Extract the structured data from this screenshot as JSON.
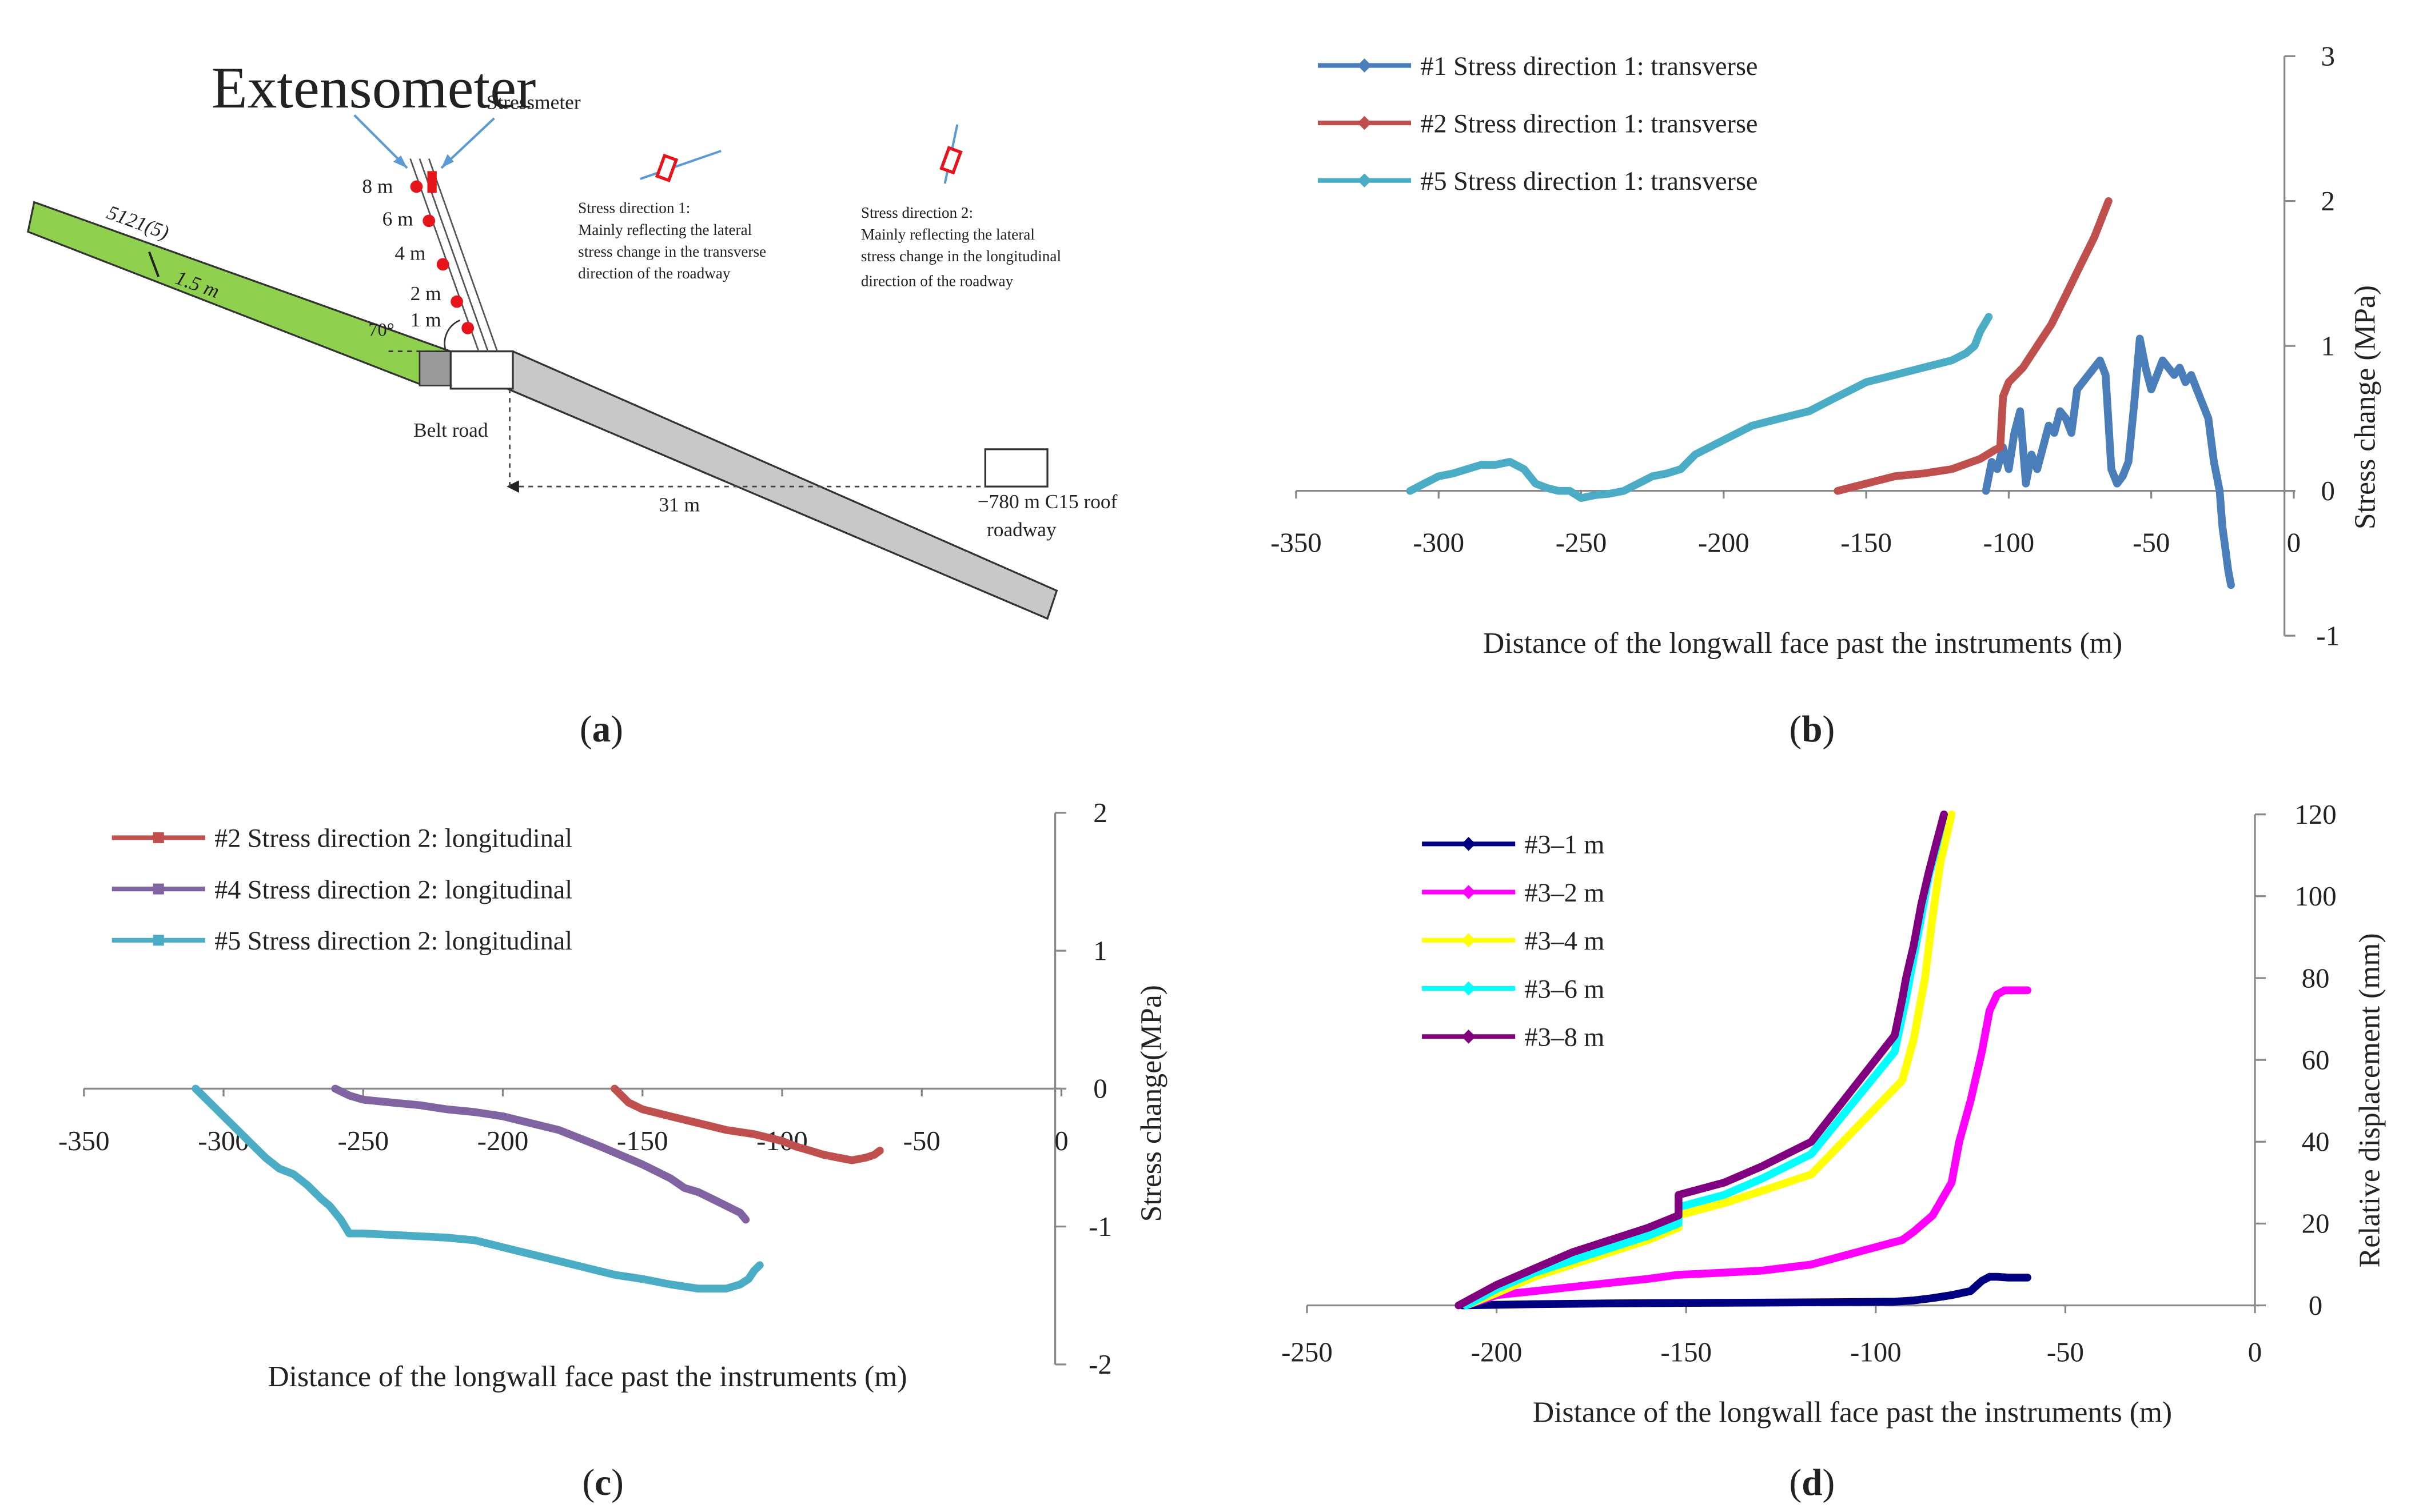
{
  "panels": {
    "a": {
      "caption_letter": "a",
      "labels": {
        "extensometer": "Extensometer",
        "stressmeter": "Stressmeter",
        "seam": "5121(5)",
        "thickness": "1.5 m",
        "angle": "70°",
        "belt_road": "Belt road",
        "distance": "31 m",
        "roof_roadway_1": "−780 m C15 roof",
        "roof_roadway_2": "roadway",
        "depths": [
          "8 m",
          "6 m",
          "4 m",
          "2 m",
          "1 m"
        ],
        "dir1": [
          "Stress direction 1:",
          "Mainly reflecting the lateral",
          "stress change in the transverse",
          "direction of the roadway"
        ],
        "dir2": [
          "Stress direction 2:",
          "Mainly reflecting the lateral",
          "stress change in the longitudinal",
          "direction of the roadway"
        ]
      },
      "colors": {
        "seam": "#8fd14f",
        "roadway": "#c8c8c8",
        "sensor": "#e8141c"
      }
    }
  },
  "chart_data": [
    {
      "id": "b",
      "caption_letter": "b",
      "type": "line",
      "xlabel": "Distance of the longwall face past the instruments (m)",
      "ylabel": "Stress change (MPa)",
      "xlim": [
        -350,
        0
      ],
      "ylim": [
        -1,
        3
      ],
      "xticks": [
        -350,
        -300,
        -250,
        -200,
        -150,
        -100,
        -50,
        0
      ],
      "yticks": [
        -1,
        0,
        1,
        2,
        3
      ],
      "y_axis_side": "right",
      "legend_position": "top-left",
      "series": [
        {
          "name": "#1 Stress direction 1: transverse",
          "color": "#4a7ebb",
          "x": [
            -108,
            -106,
            -104,
            -102,
            -100,
            -98,
            -96,
            -94,
            -92,
            -90,
            -88,
            -86,
            -84,
            -82,
            -80,
            -78,
            -76,
            -74,
            -72,
            -70,
            -68,
            -66,
            -64,
            -62,
            -60,
            -58,
            -56,
            -54,
            -52,
            -50,
            -48,
            -46,
            -44,
            -42,
            -40,
            -38,
            -36,
            -34,
            -32,
            -30,
            -28,
            -26,
            -25,
            -24,
            -23,
            -22
          ],
          "y": [
            0.0,
            0.2,
            0.15,
            0.3,
            0.15,
            0.4,
            0.55,
            0.05,
            0.25,
            0.15,
            0.3,
            0.45,
            0.4,
            0.55,
            0.5,
            0.4,
            0.7,
            0.75,
            0.8,
            0.85,
            0.9,
            0.8,
            0.15,
            0.05,
            0.1,
            0.2,
            0.6,
            1.05,
            0.85,
            0.7,
            0.8,
            0.9,
            0.85,
            0.8,
            0.85,
            0.75,
            0.8,
            0.7,
            0.6,
            0.5,
            0.2,
            0.0,
            -0.25,
            -0.4,
            -0.55,
            -0.65
          ]
        },
        {
          "name": "#2 Stress direction 1: transverse",
          "color": "#c0504d",
          "x": [
            -160,
            -150,
            -140,
            -130,
            -120,
            -110,
            -105,
            -103,
            -102,
            -101,
            -100,
            -95,
            -90,
            -85,
            -80,
            -75,
            -70,
            -67,
            -65
          ],
          "y": [
            0.0,
            0.05,
            0.1,
            0.12,
            0.15,
            0.22,
            0.28,
            0.3,
            0.65,
            0.7,
            0.75,
            0.85,
            1.0,
            1.15,
            1.35,
            1.55,
            1.75,
            1.9,
            2.0
          ]
        },
        {
          "name": "#5 Stress direction 1: transverse",
          "color": "#4bacc6",
          "x": [
            -310,
            -305,
            -300,
            -295,
            -290,
            -285,
            -280,
            -275,
            -270,
            -266,
            -262,
            -258,
            -254,
            -250,
            -245,
            -240,
            -235,
            -230,
            -225,
            -220,
            -215,
            -210,
            -200,
            -190,
            -180,
            -170,
            -165,
            -160,
            -155,
            -150,
            -140,
            -130,
            -120,
            -115,
            -112,
            -110,
            -107
          ],
          "y": [
            0.0,
            0.05,
            0.1,
            0.12,
            0.15,
            0.18,
            0.18,
            0.2,
            0.15,
            0.05,
            0.02,
            0.0,
            0.0,
            -0.05,
            -0.03,
            -0.02,
            0.0,
            0.05,
            0.1,
            0.12,
            0.15,
            0.25,
            0.35,
            0.45,
            0.5,
            0.55,
            0.6,
            0.65,
            0.7,
            0.75,
            0.8,
            0.85,
            0.9,
            0.95,
            1.0,
            1.1,
            1.2
          ]
        }
      ]
    },
    {
      "id": "c",
      "caption_letter": "c",
      "type": "line",
      "xlabel": "Distance of the longwall face past the instruments (m)",
      "ylabel": "Stress change(MPa)",
      "xlim": [
        -350,
        0
      ],
      "ylim": [
        -2,
        2
      ],
      "xticks": [
        -350,
        -300,
        -250,
        -200,
        -150,
        -100,
        -50,
        0
      ],
      "yticks": [
        -2,
        -1,
        0,
        1,
        2
      ],
      "y_axis_side": "right",
      "legend_position": "top-left",
      "series": [
        {
          "name": "#2 Stress direction 2: longitudinal",
          "color": "#c0504d",
          "x": [
            -160,
            -155,
            -150,
            -140,
            -130,
            -120,
            -110,
            -100,
            -95,
            -90,
            -85,
            -80,
            -75,
            -70,
            -67,
            -65
          ],
          "y": [
            0.0,
            -0.1,
            -0.15,
            -0.2,
            -0.25,
            -0.3,
            -0.33,
            -0.38,
            -0.42,
            -0.45,
            -0.48,
            -0.5,
            -0.52,
            -0.5,
            -0.48,
            -0.45
          ]
        },
        {
          "name": "#4 Stress direction 2: longitudinal",
          "color": "#8064a2",
          "x": [
            -260,
            -255,
            -250,
            -240,
            -230,
            -220,
            -210,
            -200,
            -190,
            -180,
            -170,
            -165,
            -150,
            -140,
            -135,
            -130,
            -125,
            -120,
            -115,
            -113
          ],
          "y": [
            0.0,
            -0.05,
            -0.08,
            -0.1,
            -0.12,
            -0.15,
            -0.17,
            -0.2,
            -0.25,
            -0.3,
            -0.38,
            -0.42,
            -0.55,
            -0.65,
            -0.72,
            -0.75,
            -0.8,
            -0.85,
            -0.9,
            -0.95
          ]
        },
        {
          "name": "#5 Stress direction 2: longitudinal",
          "color": "#4bacc6",
          "x": [
            -310,
            -305,
            -300,
            -295,
            -290,
            -285,
            -280,
            -275,
            -270,
            -265,
            -262,
            -258,
            -255,
            -250,
            -240,
            -230,
            -220,
            -210,
            -200,
            -190,
            -180,
            -170,
            -160,
            -150,
            -140,
            -130,
            -120,
            -115,
            -112,
            -110,
            -108
          ],
          "y": [
            0.0,
            -0.1,
            -0.2,
            -0.3,
            -0.4,
            -0.5,
            -0.58,
            -0.62,
            -0.7,
            -0.8,
            -0.85,
            -0.95,
            -1.05,
            -1.05,
            -1.06,
            -1.07,
            -1.08,
            -1.1,
            -1.15,
            -1.2,
            -1.25,
            -1.3,
            -1.35,
            -1.38,
            -1.42,
            -1.45,
            -1.45,
            -1.42,
            -1.38,
            -1.32,
            -1.28
          ]
        }
      ]
    },
    {
      "id": "d",
      "caption_letter": "d",
      "type": "line",
      "xlabel": "Distance of the longwall face past the instruments (m)",
      "ylabel": "Relative displacement (mm)",
      "xlim": [
        -250,
        0
      ],
      "ylim": [
        0,
        120
      ],
      "xticks": [
        -250,
        -200,
        -150,
        -100,
        -50,
        0
      ],
      "yticks": [
        0,
        20,
        40,
        60,
        80,
        100,
        120
      ],
      "y_axis_side": "right",
      "legend_position": "top-left",
      "series": [
        {
          "name": "#3–1 m",
          "color": "#000080",
          "x": [
            -209,
            -190,
            -170,
            -150,
            -130,
            -110,
            -95,
            -90,
            -85,
            -80,
            -75,
            -72,
            -70,
            -68,
            -65,
            -60
          ],
          "y": [
            0,
            0.3,
            0.5,
            0.6,
            0.7,
            0.8,
            0.9,
            1.2,
            1.8,
            2.5,
            3.5,
            6.0,
            7.0,
            7.0,
            6.8,
            6.8
          ]
        },
        {
          "name": "#3–2 m",
          "color": "#ff00ff",
          "x": [
            -208,
            -200,
            -190,
            -180,
            -170,
            -160,
            -152,
            -140,
            -130,
            -117,
            -93,
            -90,
            -85,
            -80,
            -78,
            -75,
            -72,
            -70,
            -68,
            -66,
            -63,
            -60
          ],
          "y": [
            0,
            2.5,
            3.5,
            4.5,
            5.5,
            6.5,
            7.5,
            8.0,
            8.5,
            10,
            16,
            18,
            22,
            30,
            40,
            50,
            62,
            72,
            76,
            77,
            77,
            77
          ]
        },
        {
          "name": "#3–4 m",
          "color": "#ffff00",
          "x": [
            -208,
            -200,
            -190,
            -180,
            -170,
            -160,
            -152,
            -152,
            -140,
            -130,
            -117,
            -93,
            -90,
            -87,
            -85,
            -83,
            -80
          ],
          "y": [
            0,
            3,
            7,
            10,
            13,
            16,
            19,
            22,
            25,
            28,
            32,
            55,
            65,
            80,
            95,
            108,
            120
          ]
        },
        {
          "name": "#3–6 m",
          "color": "#00ffff",
          "x": [
            -208,
            -200,
            -190,
            -180,
            -170,
            -160,
            -152,
            -152,
            -140,
            -130,
            -117,
            -95,
            -92,
            -90,
            -88,
            -86,
            -84,
            -82
          ],
          "y": [
            0,
            4,
            8,
            11,
            14,
            17,
            20,
            24,
            27,
            31,
            37,
            62,
            75,
            85,
            95,
            105,
            112,
            120
          ]
        },
        {
          "name": "#3–8 m",
          "color": "#800080",
          "x": [
            -210,
            -200,
            -190,
            -180,
            -170,
            -160,
            -152,
            -152,
            -140,
            -130,
            -117,
            -95,
            -93,
            -92,
            -90,
            -88,
            -86,
            -84,
            -82
          ],
          "y": [
            0,
            5,
            9,
            13,
            16,
            19,
            22,
            27,
            30,
            34,
            40,
            66,
            75,
            80,
            88,
            98,
            106,
            113,
            120
          ]
        }
      ]
    }
  ]
}
